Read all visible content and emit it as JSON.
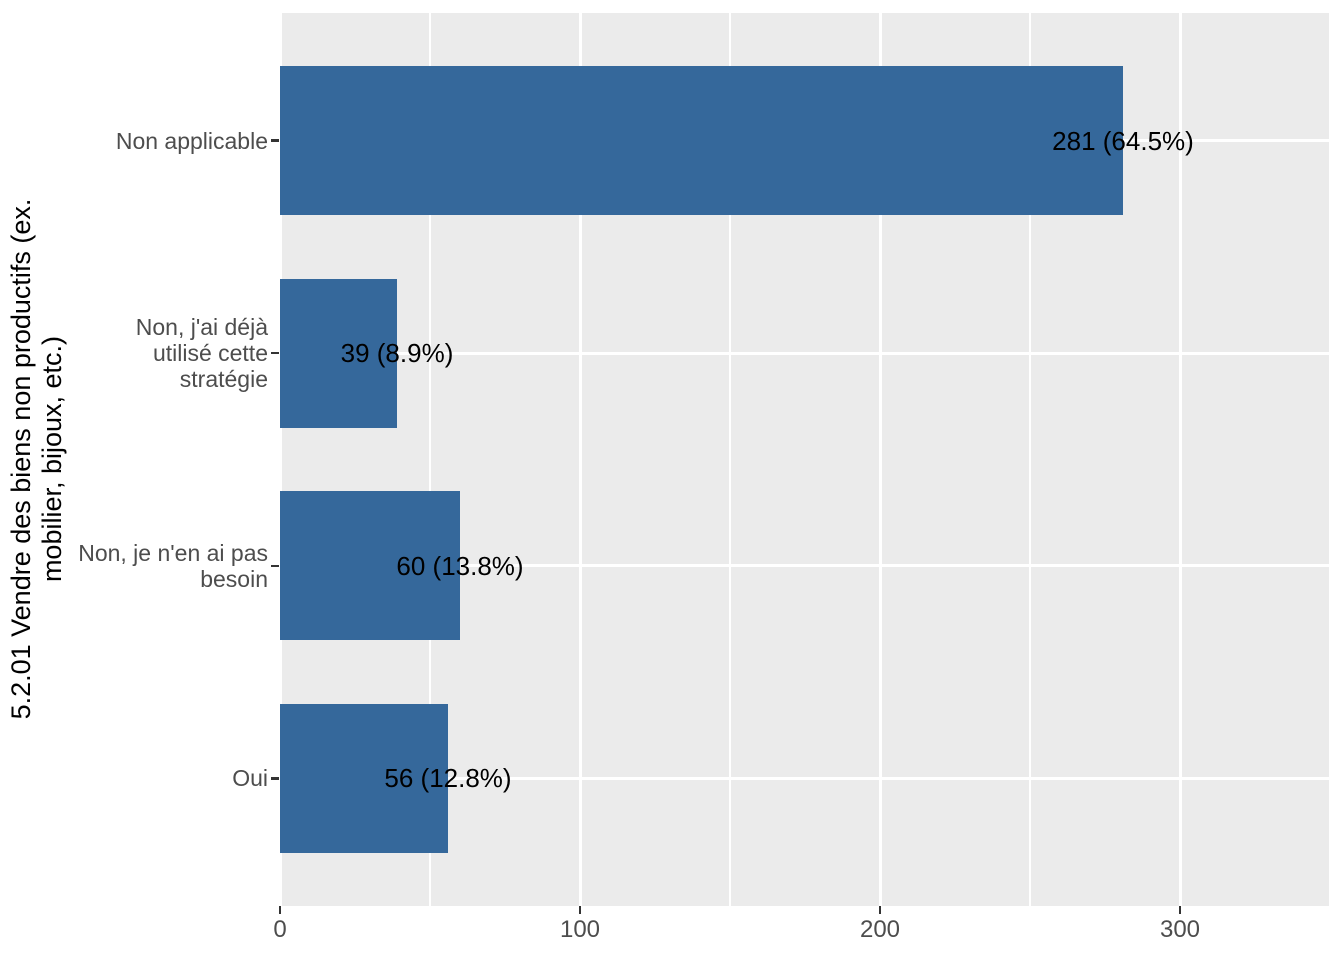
{
  "chart_data": {
    "type": "bar",
    "orientation": "horizontal",
    "title": "",
    "xlabel": "",
    "ylabel": "5.2.01 Vendre des biens non productifs (ex. mobilier, bijoux, etc.)",
    "ylabel_lines": [
      "5.2.01 Vendre des biens non productifs (ex.",
      "mobilier, bijoux, etc.)"
    ],
    "categories": [
      "Non applicable",
      "Non, j'ai déjà utilisé cette stratégie",
      "Non, je n'en ai pas besoin",
      "Oui"
    ],
    "category_label_lines": [
      [
        "Non applicable"
      ],
      [
        "Non, j'ai déjà",
        "utilisé cette",
        "stratégie"
      ],
      [
        "Non, je n'en ai pas",
        "besoin"
      ],
      [
        "Oui"
      ]
    ],
    "values": [
      281,
      39,
      60,
      56
    ],
    "percents": [
      64.5,
      8.9,
      13.8,
      12.8
    ],
    "bar_labels": [
      "281 (64.5%)",
      "39 (8.9%)",
      "60 (13.8%)",
      "56 (12.8%)"
    ],
    "x_ticks": [
      0,
      100,
      200,
      300
    ],
    "x_minor_ticks": [
      50,
      150,
      250,
      350
    ],
    "xlim": [
      0,
      350
    ],
    "grid": true,
    "legend_position": "none",
    "colors": {
      "bar": "#35689B",
      "panel_background": "#EBEBEB",
      "gridline": "#FFFFFF",
      "axis_text": "#4D4D4D",
      "tick_mark": "#333333",
      "bar_label_text": "#000000",
      "axis_title_text": "#000000",
      "outer_background": "#FFFFFF"
    }
  }
}
